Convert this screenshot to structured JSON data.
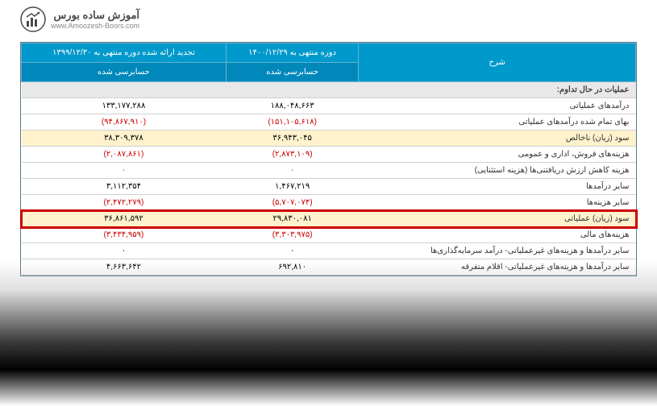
{
  "logo": {
    "title": "آموزش ساده بورس",
    "url": "www.Amoozesh-Boors.com"
  },
  "table": {
    "headers": {
      "desc": "شرح",
      "col1_top": "دوره منتهی به ۱۴۰۰/۱۲/۲۹",
      "col1_sub": "حسابرسی شده",
      "col2_top": "تجدید ارائه شده دوره منتهی به ۱۳۹۹/۱۲/۳۰",
      "col2_sub": "حسابرسی شده"
    },
    "section_title": "عملیات در حال تداوم:",
    "rows": [
      {
        "label": "درآمدهای عملیاتی",
        "v1": "۱۸۸,۰۴۸,۶۶۳",
        "v2": "۱۳۳,۱۷۷,۲۸۸",
        "cls": ""
      },
      {
        "label": "بهای تمام شده درآمدهای عملیاتی",
        "v1": "(۱۵۱,۱۰۵,۶۱۸)",
        "v2": "(۹۴,۸۶۷,۹۱۰)",
        "cls": "neg"
      },
      {
        "label": "سود (زیان) ناخالص",
        "v1": "۳۶,۹۴۳,۰۴۵",
        "v2": "۳۸,۳۰۹,۳۷۸",
        "cls": "",
        "yellow": true
      },
      {
        "label": "هزینه‌های فروش، اداری و عمومی",
        "v1": "(۲,۸۷۳,۱۰۹)",
        "v2": "(۲,۰۸۷,۸۶۱)",
        "cls": "neg"
      },
      {
        "label": "هزینه کاهش ارزش دریافتنی‌ها (هزینه استثنایی)",
        "v1": "۰",
        "v2": "۰",
        "cls": "link-like"
      },
      {
        "label": "سایر درآمدها",
        "v1": "۱,۴۶۷,۲۱۹",
        "v2": "۳,۱۱۲,۳۵۴",
        "cls": ""
      },
      {
        "label": "سایر هزینه‌ها",
        "v1": "(۵,۷۰۷,۰۷۴)",
        "v2": "(۲,۴۷۲,۲۷۹)",
        "cls": "neg"
      },
      {
        "label": "سود (زیان) عملیاتی",
        "v1": "۲۹,۸۳۰,۰۸۱",
        "v2": "۳۶,۸۶۱,۵۹۲",
        "cls": "",
        "yellow": true,
        "highlight": true
      },
      {
        "label": "هزینه‌های مالی",
        "v1": "(۳,۳۰۳,۹۷۵)",
        "v2": "(۳,۴۳۴,۹۵۹)",
        "cls": "neg"
      },
      {
        "label": "سایر درآمدها و هزینه‌های غیرعملیاتی- درآمد سرمایه‌گذاری‌ها",
        "v1": "۰",
        "v2": "۰",
        "cls": ""
      },
      {
        "label": "سایر درآمدها و هزینه‌های غیرعملیاتی- اقلام متفرقه",
        "v1": "۶۹۲,۸۱۰",
        "v2": "۴,۶۶۳,۶۴۲",
        "cls": ""
      }
    ]
  },
  "colors": {
    "header_bg": "#0099cc",
    "yellow_bg": "#fff2cc",
    "highlight_border": "#cc0000",
    "neg_text": "#cc0000"
  }
}
